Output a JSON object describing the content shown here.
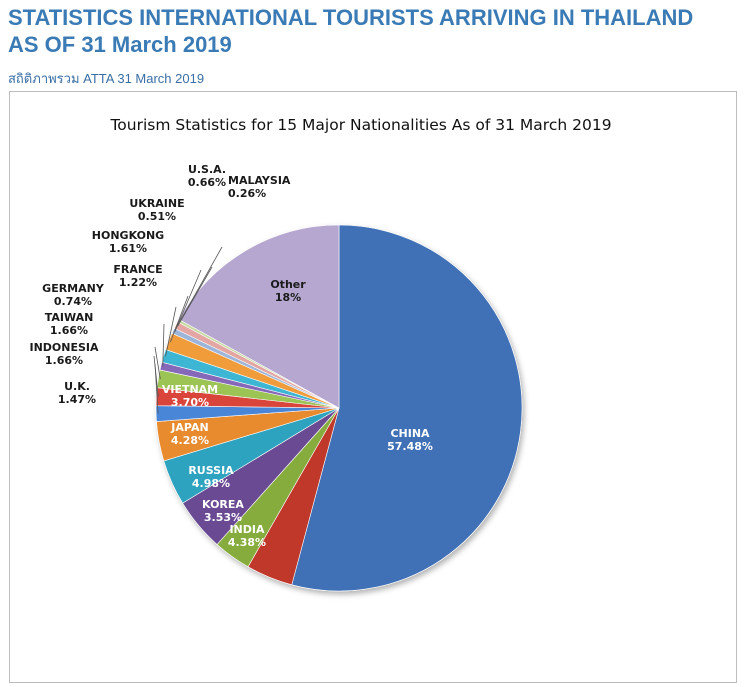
{
  "page": {
    "title": "STATISTICS INTERNATIONAL TOURISTS ARRIVING IN THAILAND AS OF 31 March 2019",
    "source": "สถิติภาพรวม ATTA 31 March 2019"
  },
  "colors": {
    "title": "#3a7bb6",
    "source": "#3a6ea5"
  },
  "chart_data": {
    "type": "pie",
    "title": "Tourism Statistics for 15 Major Nationalities As of 31 March 2019",
    "start_angle_deg": 0,
    "direction": "clockwise",
    "slices": [
      {
        "name": "CHINA",
        "label": "CHINA",
        "pct_label": "57.48%",
        "value": 57.48,
        "color": "#3f6fb5",
        "label_color": "#ffffff"
      },
      {
        "name": "INDIA",
        "label": "INDIA",
        "pct_label": "4.38%",
        "value": 4.38,
        "color": "#c0392b",
        "label_color": "#ffffff"
      },
      {
        "name": "KOREA",
        "label": "KOREA",
        "pct_label": "3.53%",
        "value": 3.53,
        "color": "#86ac3d",
        "label_color": "#ffffff"
      },
      {
        "name": "RUSSIA",
        "label": "RUSSIA",
        "pct_label": "4.98%",
        "value": 4.98,
        "color": "#6a4c93",
        "label_color": "#ffffff"
      },
      {
        "name": "JAPAN",
        "label": "JAPAN",
        "pct_label": "4.28%",
        "value": 4.28,
        "color": "#2ea3c0",
        "label_color": "#ffffff"
      },
      {
        "name": "VIETNAM",
        "label": "VIETNAM",
        "pct_label": "3.70%",
        "value": 3.7,
        "color": "#e88a2e",
        "label_color": "#ffffff"
      },
      {
        "name": "U.K.",
        "label": "U.K.",
        "pct_label": "1.47%",
        "value": 1.47,
        "color": "#4a86d8",
        "label_color": "#1a1a1a"
      },
      {
        "name": "INDONESIA",
        "label": "INDONESIA",
        "pct_label": "1.66%",
        "value": 1.66,
        "color": "#d9443b",
        "label_color": "#1a1a1a"
      },
      {
        "name": "TAIWAN",
        "label": "TAIWAN",
        "pct_label": "1.66%",
        "value": 1.66,
        "color": "#9cc455",
        "label_color": "#1a1a1a"
      },
      {
        "name": "GERMANY",
        "label": "GERMANY",
        "pct_label": "0.74%",
        "value": 0.74,
        "color": "#8667b8",
        "label_color": "#1a1a1a"
      },
      {
        "name": "FRANCE",
        "label": "FRANCE",
        "pct_label": "1.22%",
        "value": 1.22,
        "color": "#3cb6d3",
        "label_color": "#1a1a1a"
      },
      {
        "name": "HONGKONG",
        "label": "HONGKONG",
        "pct_label": "1.61%",
        "value": 1.61,
        "color": "#f09c3a",
        "label_color": "#1a1a1a"
      },
      {
        "name": "UKRAINE",
        "label": "UKRAINE",
        "pct_label": "0.51%",
        "value": 0.51,
        "color": "#9db5d9",
        "label_color": "#1a1a1a"
      },
      {
        "name": "U.S.A.",
        "label": "U.S.A.",
        "pct_label": "0.66%",
        "value": 0.66,
        "color": "#e3a6a2",
        "label_color": "#1a1a1a"
      },
      {
        "name": "MALAYSIA",
        "label": "MALAYSIA",
        "pct_label": "0.26%",
        "value": 0.26,
        "color": "#c5d9a0",
        "label_color": "#1a1a1a"
      },
      {
        "name": "Other",
        "label": "Other",
        "pct_label": "18%",
        "value": 18.0,
        "color": "#b6a7d1",
        "label_color": "#1a1a1a"
      }
    ]
  }
}
